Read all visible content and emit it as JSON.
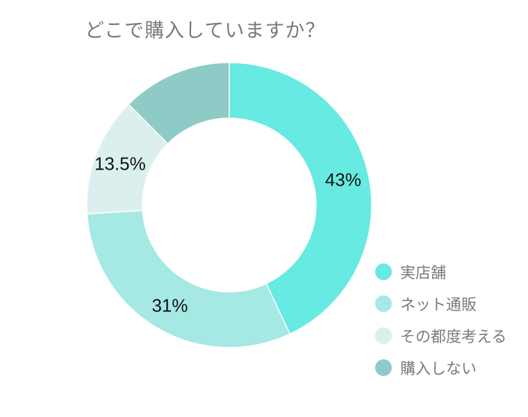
{
  "chart_data": {
    "type": "pie",
    "title": "どこで購入していますか？",
    "categories": [
      "実店舗",
      "ネット通販",
      "その都度考える",
      "購入しない"
    ],
    "values": [
      43,
      31,
      13.5,
      12.5
    ],
    "data_labels": [
      "43%",
      "31%",
      "13.5%",
      ""
    ],
    "colors": [
      "#66eae2",
      "#a5e8e4",
      "#dbefee",
      "#8ecbc6"
    ],
    "donut": true,
    "legend_position": "bottom-right"
  }
}
